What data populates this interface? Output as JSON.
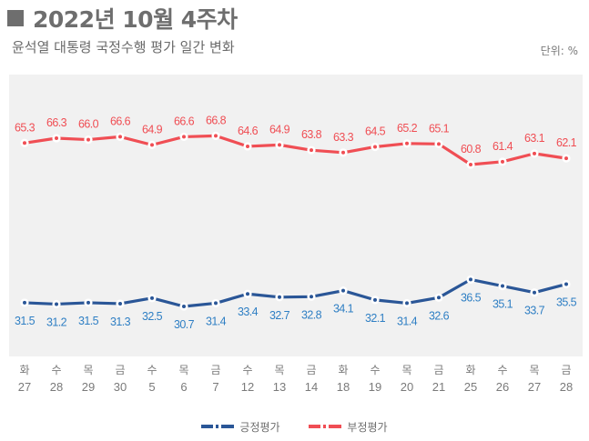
{
  "header": {
    "title": "2022년 10월 4주차",
    "subtitle": "윤석열 대통령 국정수행 평가 일간 변화",
    "unit": "단위: %"
  },
  "chart_data": {
    "type": "line",
    "title": "윤석열 대통령 국정수행 평가 일간 변화",
    "xlabel": "",
    "ylabel": "%",
    "grid": false,
    "legend_position": "bottom-center",
    "categories": [
      {
        "day": "화",
        "date": "27"
      },
      {
        "day": "수",
        "date": "28"
      },
      {
        "day": "목",
        "date": "29"
      },
      {
        "day": "금",
        "date": "30"
      },
      {
        "day": "수",
        "date": "5"
      },
      {
        "day": "목",
        "date": "6"
      },
      {
        "day": "금",
        "date": "7"
      },
      {
        "day": "수",
        "date": "12"
      },
      {
        "day": "목",
        "date": "13"
      },
      {
        "day": "금",
        "date": "14"
      },
      {
        "day": "화",
        "date": "18"
      },
      {
        "day": "수",
        "date": "19"
      },
      {
        "day": "목",
        "date": "20"
      },
      {
        "day": "금",
        "date": "21"
      },
      {
        "day": "화",
        "date": "25"
      },
      {
        "day": "수",
        "date": "26"
      },
      {
        "day": "목",
        "date": "27"
      },
      {
        "day": "금",
        "date": "28"
      }
    ],
    "series": [
      {
        "name": "긍정평가",
        "color": "#2a5697",
        "label_color": "#2f7fc4",
        "label_position": "below",
        "values": [
          31.5,
          31.2,
          31.5,
          31.3,
          32.5,
          30.7,
          31.4,
          33.4,
          32.7,
          32.8,
          34.1,
          32.1,
          31.4,
          32.6,
          36.5,
          35.1,
          33.7,
          35.5
        ]
      },
      {
        "name": "부정평가",
        "color": "#f04e54",
        "label_color": "#f04e54",
        "label_position": "above",
        "values": [
          65.3,
          66.3,
          66.0,
          66.6,
          64.9,
          66.6,
          66.8,
          64.6,
          64.9,
          63.8,
          63.3,
          64.5,
          65.2,
          65.1,
          60.8,
          61.4,
          63.1,
          62.1
        ]
      }
    ]
  },
  "legend": [
    {
      "name": "긍정평가",
      "color": "#2a5697"
    },
    {
      "name": "부정평가",
      "color": "#f04e54"
    }
  ]
}
